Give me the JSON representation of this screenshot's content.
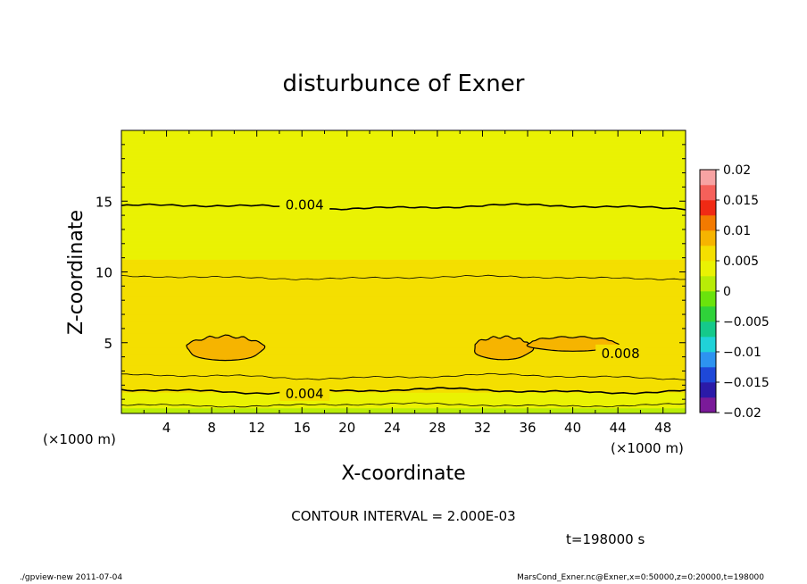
{
  "chart_data": {
    "type": "heatmap",
    "title": "disturbunce of Exner",
    "xlabel": "X-coordinate",
    "ylabel": "Z-coordinate",
    "x_unit": "(×1000 m)",
    "z_unit": "(×1000 m)",
    "xlim": [
      0,
      50
    ],
    "ylim": [
      0,
      20
    ],
    "x_ticks": [
      "4",
      "8",
      "12",
      "16",
      "20",
      "24",
      "28",
      "32",
      "36",
      "40",
      "44",
      "48"
    ],
    "y_ticks": [
      "5",
      "10",
      "15"
    ],
    "colorbar_levels": [
      -0.02,
      -0.015,
      -0.01,
      -0.005,
      0,
      0.005,
      0.01,
      0.015,
      0.02
    ],
    "colorbar_labels": [
      "0.02",
      "0.015",
      "0.01",
      "0.005",
      "0",
      "−0.005",
      "−0.01",
      "−0.015",
      "−0.02"
    ],
    "contour_interval_text": "CONTOUR INTERVAL = 2.000E-03",
    "contour_labels": [
      {
        "text": "0.004",
        "x": 16,
        "z": 14.8
      },
      {
        "text": "0.008",
        "x": 44,
        "z": 4.3
      },
      {
        "text": "0.004",
        "x": 16,
        "z": 1.45
      }
    ],
    "horizontal_bands_z_to_value": [
      {
        "z": 0.0,
        "value": 0.001
      },
      {
        "z": 0.6,
        "value": 0.003
      },
      {
        "z": 1.5,
        "value": 0.005
      },
      {
        "z": 2.4,
        "value": 0.006
      },
      {
        "z": 3.5,
        "value": 0.007
      },
      {
        "z": 7.5,
        "value": 0.0065
      },
      {
        "z": 9.8,
        "value": 0.0055
      },
      {
        "z": 12.0,
        "value": 0.0045
      },
      {
        "z": 15.0,
        "value": 0.0035
      },
      {
        "z": 20.0,
        "value": 0.003
      }
    ],
    "blobs_value_above": 0.008,
    "time_text": "t=198000 s"
  },
  "footer": {
    "left": "./gpview-new   2011-07-04",
    "right": "MarsCond_Exner.nc@Exner,x=0:50000,z=0:20000,t=198000"
  },
  "colors": {
    "palette": [
      "#7a1a99",
      "#2b1aa8",
      "#1e48d8",
      "#2d93f0",
      "#20d2d8",
      "#15c98a",
      "#2fd23a",
      "#6ae30c",
      "#b8ec07",
      "#eaf203",
      "#f4df00",
      "#f6b400",
      "#f37a00",
      "#f02a14",
      "#f5605a",
      "#f7a3a3"
    ]
  }
}
